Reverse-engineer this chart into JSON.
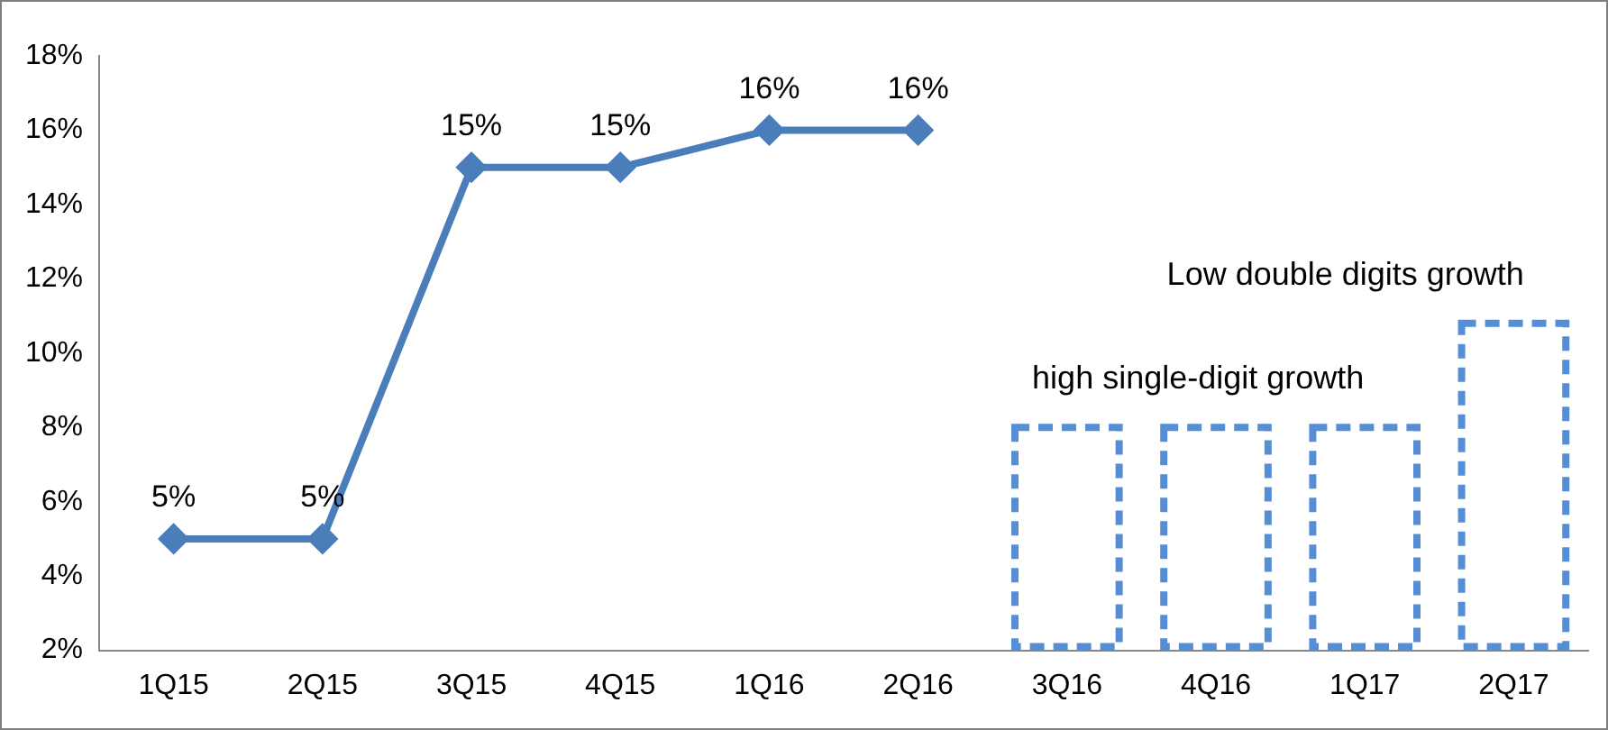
{
  "chart_data": {
    "type": "line",
    "categories": [
      "1Q15",
      "2Q15",
      "3Q15",
      "4Q15",
      "1Q16",
      "2Q16",
      "3Q16",
      "4Q16",
      "1Q17",
      "2Q17"
    ],
    "series": [
      {
        "color": "#4a7ebb",
        "values": [
          5,
          5,
          15,
          15,
          16,
          16,
          null,
          null,
          null,
          null
        ],
        "value_labels": [
          "5%",
          "5%",
          "15%",
          "15%",
          "16%",
          "16%",
          null,
          null,
          null,
          null
        ],
        "marker": "diamond"
      },
      {
        "type": "bar",
        "color": "#558ed5",
        "line_style": "dashed",
        "values": [
          null,
          null,
          null,
          null,
          null,
          null,
          8,
          8,
          8,
          10.8
        ]
      }
    ],
    "ylim": [
      2,
      18
    ],
    "yticks": [
      {
        "value": 2,
        "label": "2%"
      },
      {
        "value": 4,
        "label": "4%"
      },
      {
        "value": 6,
        "label": "6%"
      },
      {
        "value": 8,
        "label": "8%"
      },
      {
        "value": 10,
        "label": "10%"
      },
      {
        "value": 12,
        "label": "12%"
      },
      {
        "value": 14,
        "label": "14%"
      },
      {
        "value": 16,
        "label": "16%"
      },
      {
        "value": 18,
        "label": "18%"
      }
    ],
    "annotations": [
      "high single-digit growth",
      "Low double digits growth"
    ],
    "grid": false,
    "legend": false
  }
}
